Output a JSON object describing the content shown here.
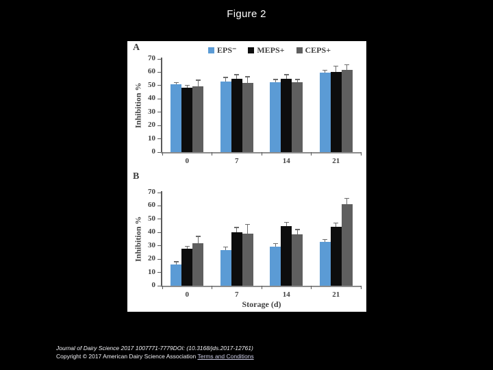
{
  "slide": {
    "title": "Figure 2",
    "background_color": "#000000"
  },
  "figure": {
    "panel_a_label": "A",
    "panel_b_label": "B"
  },
  "legend": [
    {
      "label": "EPS⁻",
      "color": "#5b9bd5"
    },
    {
      "label": "MEPS+",
      "color": "#0d0d0d"
    },
    {
      "label": "CEPS+",
      "color": "#5f5f5f"
    }
  ],
  "chart_data": [
    {
      "panel": "A",
      "type": "bar",
      "categories": [
        "0",
        "7",
        "14",
        "21"
      ],
      "series": [
        {
          "name": "EPS⁻",
          "color": "#5b9bd5",
          "values": [
            51,
            53,
            52.5,
            59.5
          ],
          "errors": [
            1,
            3,
            2,
            2
          ]
        },
        {
          "name": "MEPS+",
          "color": "#0d0d0d",
          "values": [
            48.5,
            55,
            55,
            60
          ],
          "errors": [
            1.5,
            3,
            3,
            4.5
          ]
        },
        {
          "name": "CEPS+",
          "color": "#5f5f5f",
          "values": [
            49.5,
            52,
            52.5,
            62
          ],
          "errors": [
            4.5,
            4.5,
            2,
            3.5
          ]
        }
      ],
      "xlabel": "",
      "ylabel": "Inhibition %",
      "ylim": [
        0,
        70
      ],
      "ytick_step": 10,
      "grid": false,
      "legend_position": "top"
    },
    {
      "panel": "B",
      "type": "bar",
      "categories": [
        "0",
        "7",
        "14",
        "21"
      ],
      "series": [
        {
          "name": "EPS⁻",
          "color": "#5b9bd5",
          "values": [
            16,
            27,
            29.5,
            33
          ],
          "errors": [
            2,
            2,
            2,
            1.5
          ]
        },
        {
          "name": "MEPS+",
          "color": "#0d0d0d",
          "values": [
            28,
            40,
            45,
            44.5
          ],
          "errors": [
            1.5,
            3.5,
            2.5,
            2.5
          ]
        },
        {
          "name": "CEPS+",
          "color": "#5f5f5f",
          "values": [
            32,
            39,
            38.5,
            61.5
          ],
          "errors": [
            5,
            7,
            3.5,
            4
          ]
        }
      ],
      "xlabel": "Storage (d)",
      "ylabel": "Inhibition %",
      "ylim": [
        0,
        70
      ],
      "ytick_step": 10,
      "grid": false,
      "legend_position": "none"
    }
  ],
  "footer": {
    "line1": "Journal of Dairy Science 2017 1007771-7779DOI: (10.3168/jds.2017-12761)",
    "line2_text": "Copyright © 2017 American Dairy Science Association ",
    "line2_link": "Terms and Conditions"
  }
}
